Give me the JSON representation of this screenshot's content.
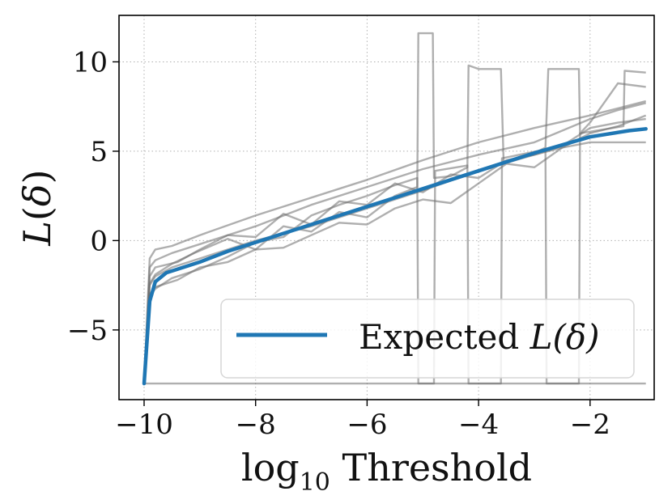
{
  "chart_data": {
    "type": "line",
    "title": "",
    "xlabel": "log10 Threshold",
    "xlabel_parts": {
      "base": "log",
      "sub": "10",
      "rest": " Threshold"
    },
    "ylabel": "L(δ)",
    "ylabel_parts": {
      "fn": "L",
      "open": "(",
      "sym": "δ",
      "close": ")"
    },
    "xlim": [
      -10.45,
      -0.85
    ],
    "ylim": [
      -8.9,
      12.6
    ],
    "xticks": [
      -10,
      -8,
      -6,
      -4,
      -2
    ],
    "xtick_labels": [
      "−10",
      "−8",
      "−6",
      "−4",
      "−2"
    ],
    "yticks": [
      -5,
      0,
      5,
      10
    ],
    "ytick_labels": [
      "−5",
      "0",
      "5",
      "10"
    ],
    "grid": true,
    "legend": {
      "position": "lower-right",
      "entries": [
        {
          "label": "Expected L(δ)",
          "label_plain": "Expected ",
          "label_math": "L(δ)",
          "color": "#1f77b4"
        }
      ]
    },
    "colors": {
      "trials": "#6e6e6e",
      "expected": "#1f77b4",
      "grid": "#b0b0b0",
      "axis": "#000000"
    },
    "series": [
      {
        "name": "Expected L(δ)",
        "role": "expected",
        "x": [
          -10,
          -9.9,
          -9.8,
          -9.6,
          -9.3,
          -9,
          -8.5,
          -8,
          -7,
          -6,
          -5,
          -4,
          -3,
          -2.5,
          -2,
          -1.5,
          -1.3,
          -1
        ],
        "y": [
          -8,
          -3.4,
          -2.3,
          -1.8,
          -1.5,
          -1.2,
          -0.6,
          -0.1,
          0.9,
          1.9,
          2.9,
          3.9,
          4.9,
          5.35,
          5.8,
          6.05,
          6.15,
          6.25
        ]
      },
      {
        "name": "trial-1",
        "role": "trial",
        "x": [
          -10,
          -9.9,
          -9.8,
          -9.5,
          -9,
          -8,
          -7,
          -6,
          -5,
          -4,
          -3,
          -2,
          -1.5,
          -1
        ],
        "y": [
          -8,
          -1,
          -0.5,
          -0.3,
          0.3,
          1.4,
          2.4,
          3.4,
          4.5,
          5.5,
          6.3,
          7,
          7.4,
          7.8
        ]
      },
      {
        "name": "trial-2",
        "role": "trial",
        "x": [
          -10,
          -9.9,
          -9.8,
          -9.5,
          -9,
          -8,
          -7,
          -6,
          -5,
          -4,
          -3,
          -2,
          -1.5,
          -1
        ],
        "y": [
          -8,
          -1.5,
          -1.1,
          -0.7,
          -0.2,
          0.8,
          2,
          3,
          4,
          4.8,
          5.5,
          6.8,
          7.3,
          7.7
        ]
      },
      {
        "name": "trial-3",
        "role": "trial",
        "x": [
          -10,
          -9.9,
          -9.8,
          -9.5,
          -9,
          -8.5,
          -8,
          -7,
          -6,
          -5,
          -4,
          -3,
          -2.5,
          -2,
          -1
        ],
        "y": [
          -8,
          -2.5,
          -2,
          -1.5,
          -1,
          -0.5,
          0,
          0.8,
          1.8,
          2.8,
          3.9,
          4.8,
          5.2,
          5.5,
          5.5
        ]
      },
      {
        "name": "trial-4",
        "role": "trial",
        "x": [
          -10,
          -9.9,
          -9.8,
          -9.4,
          -9,
          -8.5,
          -8,
          -7.5,
          -7,
          -6.5,
          -6,
          -5.5,
          -5,
          -4.5,
          -4,
          -3.5,
          -3,
          -2.5,
          -2,
          -1.5,
          -1
        ],
        "y": [
          -8,
          -2,
          -1.5,
          -1.2,
          -0.5,
          0.3,
          0.2,
          1.5,
          0.9,
          2.2,
          2,
          3.2,
          2.7,
          3.7,
          3.5,
          4.5,
          4.8,
          5.3,
          6.3,
          6.6,
          6.8
        ]
      },
      {
        "name": "trial-5",
        "role": "trial",
        "x": [
          -10,
          -9.9,
          -9.8,
          -9.4,
          -9,
          -8.5,
          -8,
          -7.5,
          -7,
          -6.5,
          -6,
          -5.5,
          -5,
          -4.5,
          -4,
          -3.5,
          -3,
          -2.5,
          -2,
          -1.5,
          -1
        ],
        "y": [
          -8,
          -3,
          -2.6,
          -2.2,
          -1.5,
          -1.2,
          -0.5,
          -0.4,
          0.3,
          1,
          0.9,
          1.8,
          2.3,
          2.1,
          3.2,
          4.3,
          4.1,
          5.2,
          6,
          6.4,
          7
        ]
      },
      {
        "name": "trial-6",
        "role": "trial",
        "x": [
          -10,
          -9.9,
          -9.8,
          -9.5,
          -9.1,
          -8.5,
          -8,
          -7.5,
          -7,
          -6.5,
          -6,
          -5.5,
          -5.1,
          -5.08,
          -4.82,
          -4.8,
          -4.5,
          -4.2,
          -4.18,
          -4,
          -3.6,
          -3.55,
          -3,
          -2.8,
          -2.75,
          -2.2,
          -2.18,
          -2,
          -1.5,
          -1
        ],
        "y": [
          -8,
          -2.4,
          -1.9,
          -1.3,
          -0.7,
          0.1,
          -0.5,
          0.8,
          0.5,
          1.6,
          1.3,
          2.5,
          3,
          11.6,
          11.6,
          3.5,
          3.6,
          4.1,
          9.8,
          9.6,
          9.6,
          4.3,
          4.9,
          5.2,
          9.6,
          9.6,
          6,
          6.6,
          8.8,
          8.6
        ]
      },
      {
        "name": "trial-7",
        "role": "trial",
        "x": [
          -10,
          -9.9,
          -9.8,
          -9.5,
          -9,
          -8.5,
          -8,
          -7.5,
          -7,
          -6.5,
          -6,
          -5.5,
          -5.1,
          -5.08,
          -4.8,
          -4.78,
          -4.2,
          -4.18,
          -3.6,
          -3.58,
          -2.8,
          -2.78,
          -2.2,
          -2.18,
          -1.4,
          -1.38,
          -1
        ],
        "y": [
          -8,
          -3.1,
          -2.7,
          -2.1,
          -1.6,
          -0.9,
          -0.1,
          0.2,
          1.4,
          2,
          2.5,
          3.1,
          3.5,
          -8,
          -8,
          3.9,
          4.2,
          -8,
          -8,
          4.6,
          5.1,
          -8,
          -8,
          6,
          6.4,
          9.5,
          9.4
        ]
      },
      {
        "name": "trial-8",
        "role": "trial",
        "x": [
          -10,
          -1
        ],
        "y": [
          -8,
          -8
        ]
      }
    ]
  }
}
